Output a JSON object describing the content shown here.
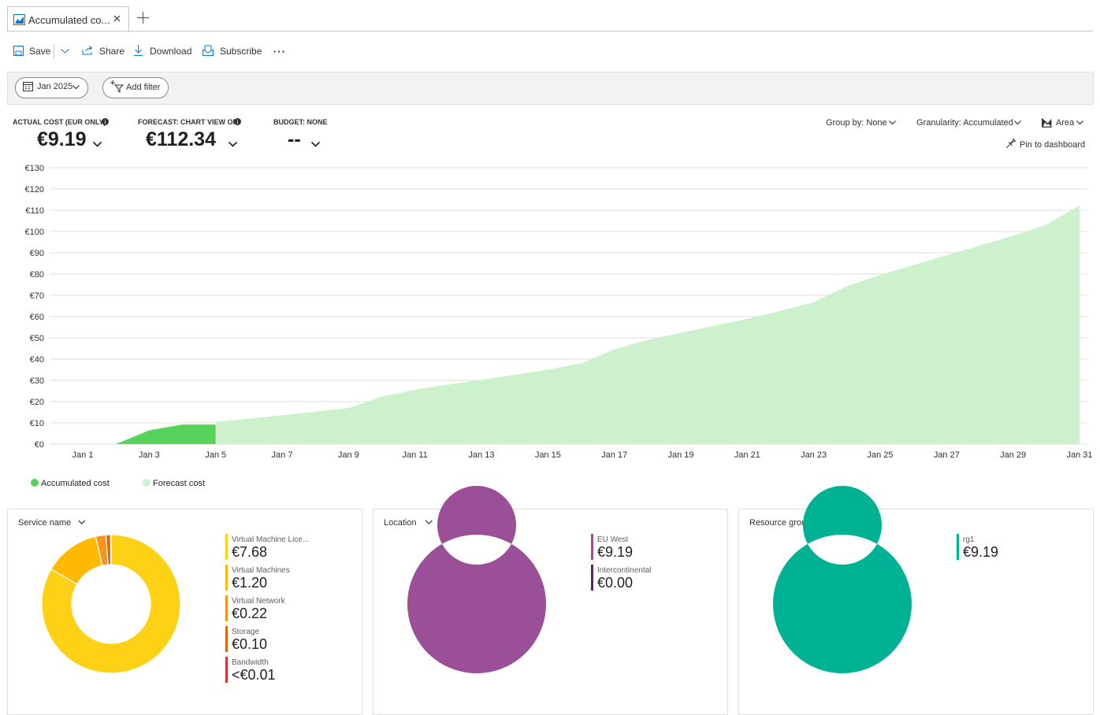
{
  "tab": {
    "title": "Accumulated co..."
  },
  "toolbar": [
    "Save",
    "Share",
    "Download",
    "Subscribe"
  ],
  "filters": [
    "Jan 2025",
    "Add filter"
  ],
  "kpis": [
    {
      "label": "ACTUAL COST (EUR ONLY)",
      "value": "€9.19"
    },
    {
      "label": "FORECAST: CHART VIEW ON",
      "value": "€112.34"
    },
    {
      "label": "BUDGET: NONE",
      "value": "--"
    }
  ],
  "controls": [
    "Group by: None",
    "Granularity: Accumulated",
    "Area"
  ],
  "pin": "Pin to dashboard",
  "chart_data": [
    {
      "type": "area",
      "categories": [
        "Jan 1",
        null,
        "Jan 3",
        null,
        "Jan 5",
        null,
        "Jan 7",
        null,
        "Jan 9",
        null,
        "Jan 11",
        null,
        "Jan 13",
        null,
        "Jan 15",
        null,
        "Jan 17",
        null,
        "Jan 19",
        null,
        "Jan 21",
        null,
        "Jan 23",
        null,
        "Jan 25",
        null,
        "Jan 27",
        null,
        "Jan 29",
        null,
        "Jan 31"
      ],
      "series": [
        {
          "name": "Accumulated cost",
          "color": "#57d25b",
          "values": [
            0,
            0,
            6.5,
            9.19,
            9.19,
            null,
            null,
            null,
            null,
            null,
            null,
            null,
            null,
            null,
            null,
            null,
            null,
            null,
            null,
            null,
            null,
            null,
            null,
            null,
            null,
            null,
            null,
            null,
            null,
            null,
            null
          ]
        },
        {
          "name": "Forecast cost",
          "color": "#cdf1cc",
          "values": [
            null,
            null,
            null,
            null,
            10.4,
            12,
            13.6,
            15.3,
            17,
            22.3,
            25.6,
            28,
            30.3,
            32.6,
            35,
            38,
            44.6,
            49,
            52.3,
            55.6,
            59,
            62.7,
            66.8,
            74.3,
            79.6,
            84.2,
            88.8,
            93.4,
            98,
            103.2,
            112.34
          ]
        }
      ],
      "ylim": [
        0,
        130
      ],
      "yticks": [
        {
          "value": 0,
          "label": "€0"
        },
        {
          "value": 10,
          "label": "€10"
        },
        {
          "value": 20,
          "label": "€20"
        },
        {
          "value": 30,
          "label": "€30"
        },
        {
          "value": 40,
          "label": "€40"
        },
        {
          "value": 50,
          "label": "€50"
        },
        {
          "value": 60,
          "label": "€60"
        },
        {
          "value": 70,
          "label": "€70"
        },
        {
          "value": 80,
          "label": "€80"
        },
        {
          "value": 90,
          "label": "€90"
        },
        {
          "value": 100,
          "label": "€100"
        },
        {
          "value": 110,
          "label": "€110"
        },
        {
          "value": 120,
          "label": "€120"
        },
        {
          "value": 130,
          "label": "€130"
        }
      ],
      "grid": true,
      "legend": "bottom-left"
    },
    {
      "type": "donut",
      "title": "Service name",
      "categories": [
        "Virtual Machine Lice...",
        "Virtual Machines",
        "Virtual Network",
        "Storage",
        "Bandwidth"
      ],
      "values": [
        7.68,
        1.2,
        0.22,
        0.1,
        0.01
      ],
      "value_labels": [
        "€7.68",
        "€1.20",
        "€0.22",
        "€0.10",
        "<€0.01"
      ],
      "colors": [
        "#fcd116",
        "#ffb900",
        "#f7941d",
        "#e3650b",
        "#d13438"
      ]
    },
    {
      "type": "donut",
      "title": "Location",
      "categories": [
        "EU West",
        "Intercontinental"
      ],
      "values": [
        9.19,
        0
      ],
      "value_labels": [
        "€9.19",
        "€0.00"
      ],
      "colors": [
        "#9b4f96",
        "#5c2462"
      ]
    },
    {
      "type": "donut",
      "title": "Resource group name",
      "categories": [
        "rg1"
      ],
      "values": [
        9.19
      ],
      "value_labels": [
        "€9.19"
      ],
      "colors": [
        "#00b294"
      ]
    }
  ]
}
